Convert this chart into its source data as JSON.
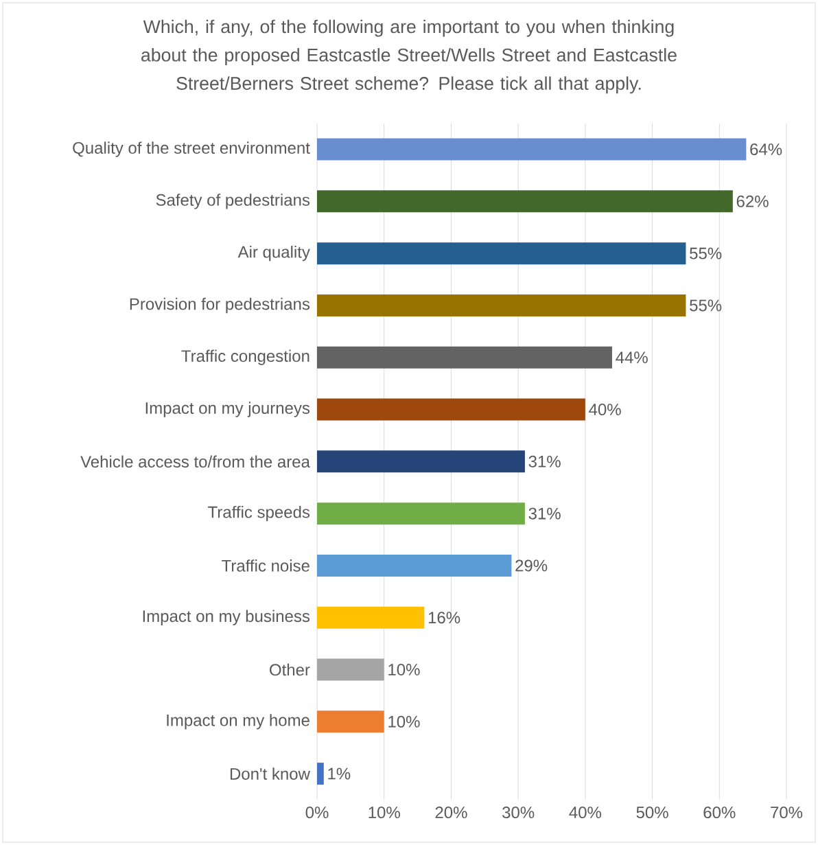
{
  "chart_data": {
    "type": "bar",
    "orientation": "horizontal",
    "title": "Which, if any, of the following are important to you when thinking about the proposed Eastcastle Street/Wells Street and Eastcastle Street/Berners Street scheme? Please tick all that apply.",
    "categories": [
      "Quality of the street environment",
      "Safety of pedestrians",
      "Air quality",
      "Provision for pedestrians",
      "Traffic congestion",
      "Impact on my journeys",
      "Vehicle access to/from the area",
      "Traffic speeds",
      "Traffic noise",
      "Impact on my business",
      "Other",
      "Impact on my home",
      "Don't know"
    ],
    "values": [
      64,
      62,
      55,
      55,
      44,
      40,
      31,
      31,
      29,
      16,
      10,
      10,
      1
    ],
    "value_labels": [
      "64%",
      "62%",
      "55%",
      "55%",
      "44%",
      "40%",
      "31%",
      "31%",
      "29%",
      "16%",
      "10%",
      "10%",
      "1%"
    ],
    "colors": [
      "#698ed0",
      "#43682b",
      "#255e91",
      "#997300",
      "#636363",
      "#9e480e",
      "#264478",
      "#70ad47",
      "#5b9bd5",
      "#ffc000",
      "#a5a5a5",
      "#ed7d31",
      "#4472c4"
    ],
    "xlim": [
      0,
      70
    ],
    "xticks": [
      {
        "value": 0,
        "label": "0%"
      },
      {
        "value": 10,
        "label": "10%"
      },
      {
        "value": 20,
        "label": "20%"
      },
      {
        "value": 30,
        "label": "30%"
      },
      {
        "value": 40,
        "label": "40%"
      },
      {
        "value": 50,
        "label": "50%"
      },
      {
        "value": 60,
        "label": "60%"
      },
      {
        "value": 70,
        "label": "70%"
      }
    ],
    "grid": "x"
  }
}
